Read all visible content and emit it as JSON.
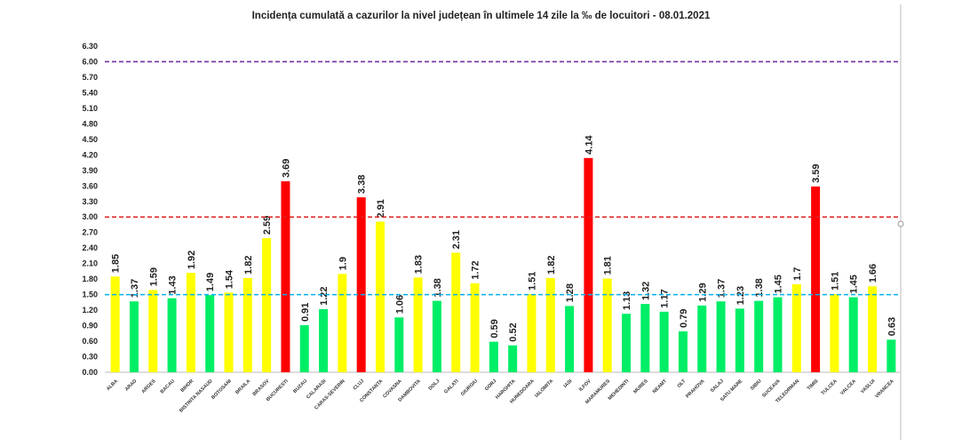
{
  "chart_data": {
    "type": "bar",
    "title": "Incidența cumulată a cazurilor la nivel județean în ultimele 14 zile la ‰ de locuitori - 08.01.2021",
    "xlabel": "",
    "ylabel": "",
    "ylim": [
      0,
      6.3
    ],
    "yticks": [
      "0.00",
      "0.30",
      "0.60",
      "0.90",
      "1.20",
      "1.50",
      "1.80",
      "2.10",
      "2.40",
      "2.70",
      "3.00",
      "3.30",
      "3.60",
      "3.90",
      "4.20",
      "4.50",
      "4.80",
      "5.10",
      "5.40",
      "5.70",
      "6.00",
      "6.30"
    ],
    "grid": false,
    "categories": [
      "ALBA",
      "ARAD",
      "ARGES",
      "BACAU",
      "BIHOR",
      "BISTRITA NASAUD",
      "BOTOSANI",
      "BRAILA",
      "BRASOV",
      "BUCURESTI",
      "BUZAU",
      "CALARASI",
      "CARAS-SEVERIN",
      "CLUJ",
      "CONSTANTA",
      "COVASNA",
      "DAMBOVITA",
      "DOLJ",
      "GALATI",
      "GIURGIU",
      "GORJ",
      "HARGHITA",
      "HUNEDOARA",
      "IALOMITA",
      "IASI",
      "ILFOV",
      "MARAMURES",
      "MEHEDINTI",
      "MURES",
      "NEAMT",
      "OLT",
      "PRAHOVA",
      "SALAJ",
      "SATU MARE",
      "SIBIU",
      "SUCEAVA",
      "TELEORMAN",
      "TIMIS",
      "TULCEA",
      "VALCEA",
      "VASLUI",
      "VRANCEA"
    ],
    "values": [
      1.85,
      1.37,
      1.59,
      1.43,
      1.92,
      1.49,
      1.54,
      1.82,
      2.59,
      3.69,
      0.91,
      1.22,
      1.9,
      3.38,
      2.91,
      1.06,
      1.83,
      1.38,
      2.31,
      1.72,
      0.59,
      0.52,
      1.51,
      1.82,
      1.28,
      4.14,
      1.81,
      1.13,
      1.32,
      1.17,
      0.79,
      1.29,
      1.37,
      1.23,
      1.38,
      1.45,
      1.7,
      3.59,
      1.51,
      1.45,
      1.66,
      0.63
    ],
    "thresholds": [
      {
        "value": 6.0,
        "color": "#7030a0"
      },
      {
        "value": 3.0,
        "color": "#e02020"
      },
      {
        "value": 1.5,
        "color": "#00b0f0"
      }
    ],
    "colors": {
      "low": "#00ee66",
      "mid": "#ffff00",
      "high": "#ff0000"
    }
  }
}
